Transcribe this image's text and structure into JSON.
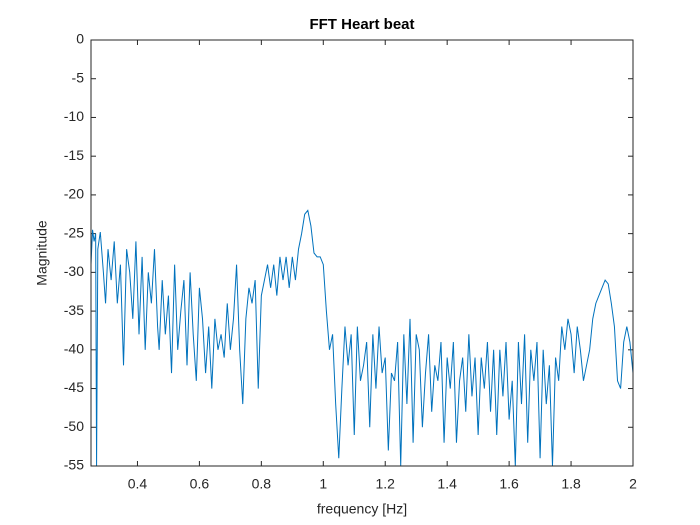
{
  "chart_data": {
    "type": "line",
    "title": "FFT Heart beat",
    "x_label": "frequency [Hz]",
    "y_label": "Magnitude",
    "xlim": [
      0.25,
      2
    ],
    "ylim": [
      -55,
      0
    ],
    "xticks": [
      0.4,
      0.6,
      0.8,
      1,
      1.2,
      1.4,
      1.6,
      1.8,
      2
    ],
    "yticks": [
      0,
      -5,
      -10,
      -15,
      -20,
      -25,
      -30,
      -35,
      -40,
      -45,
      -50,
      -55
    ],
    "grid": false,
    "color": "#0072bd",
    "x": [
      0.25,
      0.255,
      0.26,
      0.265,
      0.268,
      0.272,
      0.28,
      0.29,
      0.297,
      0.305,
      0.315,
      0.325,
      0.335,
      0.345,
      0.355,
      0.365,
      0.375,
      0.385,
      0.395,
      0.405,
      0.415,
      0.425,
      0.435,
      0.445,
      0.455,
      0.465,
      0.47,
      0.48,
      0.49,
      0.5,
      0.51,
      0.52,
      0.53,
      0.54,
      0.55,
      0.56,
      0.57,
      0.58,
      0.59,
      0.6,
      0.61,
      0.62,
      0.63,
      0.64,
      0.65,
      0.66,
      0.67,
      0.68,
      0.69,
      0.7,
      0.71,
      0.72,
      0.73,
      0.74,
      0.75,
      0.76,
      0.77,
      0.78,
      0.79,
      0.8,
      0.81,
      0.82,
      0.83,
      0.84,
      0.85,
      0.86,
      0.87,
      0.88,
      0.89,
      0.9,
      0.91,
      0.92,
      0.93,
      0.94,
      0.95,
      0.96,
      0.97,
      0.98,
      0.99,
      1.0,
      1.01,
      1.02,
      1.03,
      1.04,
      1.05,
      1.06,
      1.07,
      1.08,
      1.09,
      1.1,
      1.11,
      1.12,
      1.13,
      1.14,
      1.15,
      1.16,
      1.17,
      1.18,
      1.19,
      1.2,
      1.21,
      1.22,
      1.23,
      1.24,
      1.25,
      1.26,
      1.27,
      1.28,
      1.29,
      1.3,
      1.31,
      1.32,
      1.33,
      1.34,
      1.35,
      1.36,
      1.37,
      1.38,
      1.39,
      1.4,
      1.41,
      1.42,
      1.43,
      1.44,
      1.45,
      1.46,
      1.47,
      1.48,
      1.49,
      1.5,
      1.51,
      1.52,
      1.53,
      1.54,
      1.55,
      1.56,
      1.57,
      1.58,
      1.59,
      1.6,
      1.61,
      1.62,
      1.63,
      1.64,
      1.65,
      1.66,
      1.67,
      1.68,
      1.69,
      1.7,
      1.71,
      1.72,
      1.73,
      1.74,
      1.75,
      1.76,
      1.77,
      1.78,
      1.79,
      1.8,
      1.81,
      1.82,
      1.83,
      1.84,
      1.85,
      1.86,
      1.87,
      1.88,
      1.89,
      1.9,
      1.91,
      1.92,
      1.93,
      1.94,
      1.95,
      1.96,
      1.97,
      1.98,
      1.99,
      2.0
    ],
    "values": [
      -29,
      -24.5,
      -26,
      -25,
      -55,
      -27,
      -24.8,
      -30,
      -34,
      -27,
      -31,
      -26,
      -34,
      -29,
      -42,
      -27,
      -30,
      -36,
      -26,
      -38,
      -28,
      -40,
      -30,
      -34,
      -27,
      -37,
      -40,
      -31,
      -38,
      -33,
      -43,
      -29,
      -40,
      -35,
      -31,
      -42,
      -30,
      -38,
      -44,
      -32,
      -36,
      -43,
      -37,
      -45,
      -36,
      -40,
      -38,
      -41,
      -34,
      -40,
      -36,
      -29,
      -40,
      -47,
      -36,
      -32,
      -34,
      -31,
      -45,
      -33,
      -31,
      -29,
      -32,
      -29,
      -33,
      -28,
      -31,
      -28,
      -32,
      -28,
      -31,
      -27,
      -25,
      -22.5,
      -22,
      -24,
      -27.5,
      -28,
      -28,
      -29,
      -35,
      -40,
      -38,
      -47,
      -54,
      -45,
      -37,
      -42,
      -38,
      -51,
      -37,
      -44,
      -42,
      -39,
      -50,
      -38,
      -45,
      -37,
      -43,
      -41,
      -53,
      -43,
      -44,
      -39,
      -55,
      -38,
      -47,
      -36,
      -52,
      -38,
      -40,
      -50,
      -43,
      -38,
      -48,
      -42,
      -44,
      -39,
      -52,
      -41,
      -45,
      -39,
      -52,
      -44,
      -41,
      -48,
      -38,
      -46,
      -41,
      -51,
      -41,
      -45,
      -39,
      -48,
      -40,
      -51,
      -40,
      -46,
      -39,
      -49,
      -44,
      -55,
      -39,
      -47,
      -38,
      -52,
      -40,
      -44,
      -39,
      -54,
      -40,
      -47,
      -42,
      -55,
      -41,
      -44,
      -37,
      -40,
      -36,
      -38,
      -43,
      -37,
      -40,
      -44,
      -42,
      -40,
      -36,
      -34,
      -33,
      -32,
      -31,
      -31.5,
      -34,
      -37,
      -44,
      -45,
      -39,
      -37,
      -39,
      -43
    ]
  }
}
